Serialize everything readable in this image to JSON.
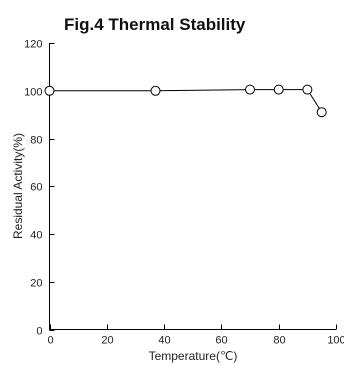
{
  "chart_data": {
    "type": "line",
    "title": "Fig.4 Thermal Stability",
    "xlabel": "Temperature(℃)",
    "ylabel": "Residual Activity(%)",
    "xlim": [
      0,
      100
    ],
    "ylim": [
      0,
      120
    ],
    "xticks": [
      0,
      20,
      40,
      60,
      80,
      100
    ],
    "yticks": [
      0,
      20,
      40,
      60,
      80,
      100,
      120
    ],
    "grid": false,
    "series": [
      {
        "x": [
          0,
          37,
          70,
          80,
          90,
          95
        ],
        "y": [
          100,
          100,
          100.5,
          100.5,
          100.5,
          91
        ],
        "marker": "open-circle",
        "color": "#000000"
      }
    ]
  }
}
